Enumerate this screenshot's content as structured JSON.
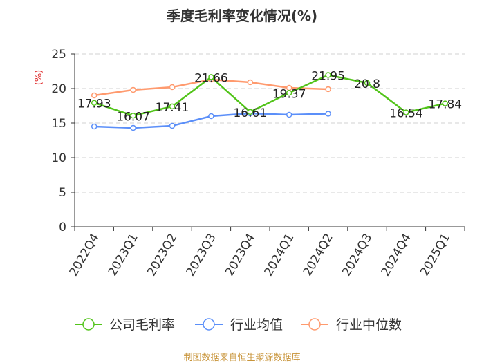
{
  "chart_data": {
    "type": "line",
    "title": "季度毛利率变化情况(%)",
    "ylabel": "(%)",
    "xlabel": "",
    "ylim": [
      0,
      25
    ],
    "yticks": [
      0,
      5,
      10,
      15,
      20,
      25
    ],
    "grid": true,
    "legend_position": "bottom",
    "categories": [
      "2022Q4",
      "2023Q1",
      "2023Q2",
      "2023Q3",
      "2023Q4",
      "2024Q1",
      "2024Q2",
      "2024Q3",
      "2024Q4",
      "2025Q1"
    ],
    "series": [
      {
        "name": "公司毛利率",
        "color": "#52c41a",
        "values": [
          17.93,
          16.07,
          17.41,
          21.66,
          16.61,
          19.37,
          21.95,
          20.8,
          16.54,
          17.84
        ],
        "labels": [
          "17.93",
          "16.07",
          "17.41",
          "21.66",
          "16.61",
          "19.37",
          "21.95",
          "20.8",
          "16.54",
          "17.84"
        ]
      },
      {
        "name": "行业均值",
        "color": "#5b8ff9",
        "values": [
          14.5,
          14.3,
          14.6,
          16.0,
          16.4,
          16.2,
          16.35,
          null,
          null,
          null
        ]
      },
      {
        "name": "行业中位数",
        "color": "#ff9a6e",
        "values": [
          19.0,
          19.8,
          20.2,
          21.3,
          20.9,
          20.1,
          19.9,
          null,
          null,
          null
        ]
      }
    ]
  },
  "source": "制图数据来自恒生聚源数据库"
}
